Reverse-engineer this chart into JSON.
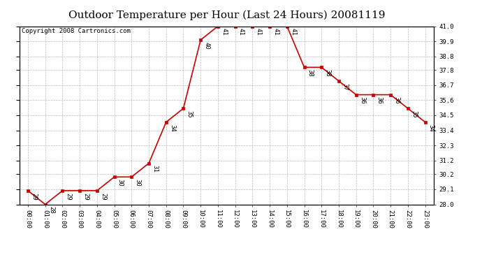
{
  "title": "Outdoor Temperature per Hour (Last 24 Hours) 20081119",
  "copyright": "Copyright 2008 Cartronics.com",
  "hours": [
    "00:00",
    "01:00",
    "02:00",
    "03:00",
    "04:00",
    "05:00",
    "06:00",
    "07:00",
    "08:00",
    "09:00",
    "10:00",
    "11:00",
    "12:00",
    "13:00",
    "14:00",
    "15:00",
    "16:00",
    "17:00",
    "18:00",
    "19:00",
    "20:00",
    "21:00",
    "22:00",
    "23:00"
  ],
  "temps": [
    29,
    28,
    29,
    29,
    29,
    30,
    30,
    31,
    34,
    35,
    40,
    41,
    41,
    41,
    41,
    41,
    38,
    38,
    37,
    36,
    36,
    36,
    35,
    34
  ],
  "ylim_min": 28.0,
  "ylim_max": 41.0,
  "yticks": [
    28.0,
    29.1,
    30.2,
    31.2,
    32.3,
    33.4,
    34.5,
    35.6,
    36.7,
    37.8,
    38.8,
    39.9,
    41.0
  ],
  "line_color": "#cc0000",
  "marker_color": "#cc0000",
  "grid_color": "#bbbbbb",
  "bg_color": "#ffffff",
  "title_fontsize": 11,
  "label_fontsize": 6.5,
  "annot_fontsize": 6.5,
  "copyright_fontsize": 6.5
}
